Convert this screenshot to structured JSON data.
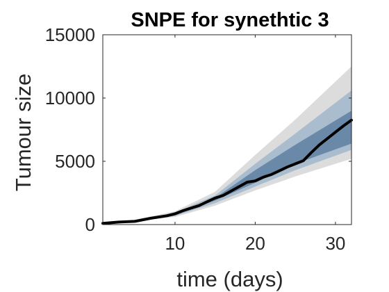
{
  "chart_data": {
    "type": "area",
    "title": "SNPE for synethtic 3",
    "xlabel": "time (days)",
    "ylabel": "Tumour size",
    "xlim": [
      1,
      32
    ],
    "ylim": [
      0,
      15000
    ],
    "x_ticks": [
      10,
      20,
      30
    ],
    "y_ticks": [
      0,
      5000,
      10000,
      15000
    ],
    "grid": false,
    "legend": "none",
    "colors": {
      "band_outer": "#dcdcdc",
      "band_middle": "#a9bdcf",
      "band_inner": "#6a89a8",
      "median_line": "#000000",
      "axis": "#262626"
    },
    "series": [
      {
        "type": "band",
        "x": [
          1,
          5,
          10,
          15,
          20,
          25,
          32
        ],
        "lower": [
          100,
          250,
          600,
          1500,
          2700,
          3800,
          5200
        ],
        "upper": [
          150,
          380,
          1050,
          2600,
          5500,
          8300,
          12500
        ]
      },
      {
        "type": "band",
        "x": [
          1,
          5,
          10,
          15,
          20,
          25,
          32
        ],
        "lower": [
          110,
          270,
          680,
          1700,
          3000,
          4300,
          5900
        ],
        "upper": [
          140,
          350,
          950,
          2300,
          4800,
          7200,
          10600
        ]
      },
      {
        "type": "band",
        "x": [
          1,
          5,
          10,
          15,
          20,
          25,
          32
        ],
        "lower": [
          115,
          290,
          730,
          1900,
          3300,
          4800,
          6400
        ],
        "upper": [
          135,
          320,
          860,
          2100,
          4300,
          6300,
          9000
        ]
      },
      {
        "type": "line",
        "x": [
          1,
          3,
          5,
          7,
          9,
          10,
          11,
          12,
          13,
          14,
          15,
          16,
          17,
          18,
          19,
          20,
          21,
          22,
          23,
          24,
          25,
          26,
          27,
          28,
          29,
          30,
          31,
          32
        ],
        "y": [
          100,
          200,
          250,
          500,
          700,
          850,
          1100,
          1300,
          1500,
          1800,
          2100,
          2300,
          2650,
          3000,
          3350,
          3450,
          3750,
          3950,
          4250,
          4550,
          4800,
          5050,
          5700,
          6300,
          6800,
          7300,
          7800,
          8250
        ]
      }
    ]
  }
}
